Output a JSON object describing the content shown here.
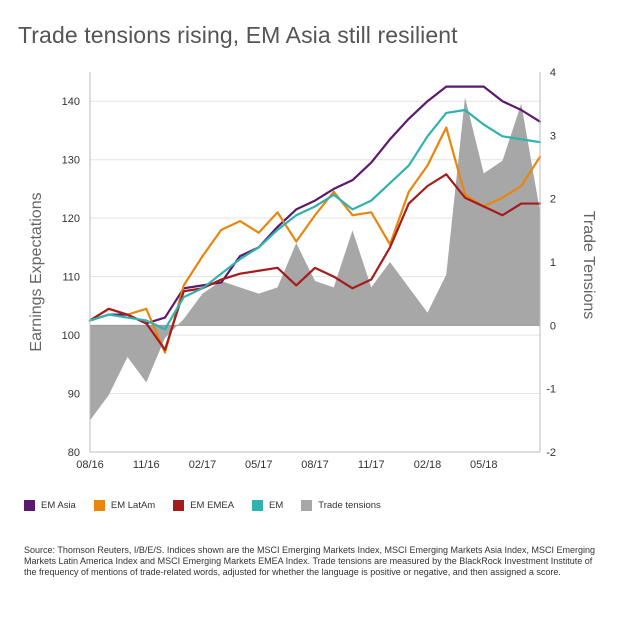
{
  "chart_data": {
    "type": "line",
    "title": "Trade tensions rising, EM Asia still resilient",
    "ylabel": "Earnings Expectations",
    "ylabel_right": "Trade Tensions",
    "ylim": [
      80,
      145
    ],
    "ylim_right": [
      -2,
      4
    ],
    "y_ticks": [
      "80",
      "90",
      "100",
      "110",
      "120",
      "130",
      "140"
    ],
    "y_ticks_right": [
      "-2",
      "-1",
      "0",
      "1",
      "2",
      "3",
      "4"
    ],
    "x_ticks": [
      "08/16",
      "11/16",
      "02/17",
      "05/17",
      "08/17",
      "11/17",
      "02/18",
      "05/18"
    ],
    "x_range": [
      "08/16",
      "08/18"
    ],
    "grid": true,
    "legend_position": "bottom",
    "series": [
      {
        "name": "EM Asia",
        "color": "#5b1a6e",
        "x": [
          "08/16",
          "09/16",
          "10/16",
          "11/16",
          "12/16",
          "01/17",
          "02/17",
          "03/17",
          "04/17",
          "05/17",
          "06/17",
          "07/17",
          "08/17",
          "09/17",
          "10/17",
          "11/17",
          "12/17",
          "01/18",
          "02/18",
          "03/18",
          "04/18",
          "05/18",
          "06/18",
          "07/18",
          "08/18"
        ],
        "values": [
          102.5,
          103.5,
          103.5,
          102,
          103,
          108,
          108.5,
          109,
          113.5,
          115,
          118.5,
          121.5,
          123,
          125,
          126.5,
          129.5,
          133.5,
          137,
          140,
          142.5,
          142.5,
          142.5,
          140,
          138.5,
          136.5
        ]
      },
      {
        "name": "EM LatAm",
        "color": "#e8860e",
        "x": [
          "08/16",
          "09/16",
          "10/16",
          "11/16",
          "12/16",
          "01/17",
          "02/17",
          "03/17",
          "04/17",
          "05/17",
          "06/17",
          "07/17",
          "08/17",
          "09/17",
          "10/17",
          "11/17",
          "12/17",
          "01/18",
          "02/18",
          "03/18",
          "04/18",
          "05/18",
          "06/18",
          "07/18",
          "08/18"
        ],
        "values": [
          102.5,
          104.5,
          103.5,
          104.5,
          97,
          108.5,
          113.5,
          118,
          119.5,
          117.5,
          121,
          116,
          120.5,
          124.5,
          120.5,
          121,
          115.5,
          124.5,
          129,
          135.5,
          124,
          122,
          123.5,
          125.5,
          130.5
        ]
      },
      {
        "name": "EM EMEA",
        "color": "#a51c1c",
        "x": [
          "08/16",
          "09/16",
          "10/16",
          "11/16",
          "12/16",
          "01/17",
          "02/17",
          "03/17",
          "04/17",
          "05/17",
          "06/17",
          "07/17",
          "08/17",
          "09/17",
          "10/17",
          "11/17",
          "12/17",
          "01/18",
          "02/18",
          "03/18",
          "04/18",
          "05/18",
          "06/18",
          "07/18",
          "08/18"
        ],
        "values": [
          102.5,
          104.5,
          103.5,
          102,
          97.5,
          107.5,
          108,
          109.5,
          110.5,
          111,
          111.5,
          108.5,
          111.5,
          110,
          108,
          109.5,
          115,
          122.5,
          125.5,
          127.5,
          123.5,
          122,
          120.5,
          122.5,
          122.5
        ]
      },
      {
        "name": "EM",
        "color": "#2fb2b0",
        "x": [
          "08/16",
          "09/16",
          "10/16",
          "11/16",
          "12/16",
          "01/17",
          "02/17",
          "03/17",
          "04/17",
          "05/17",
          "06/17",
          "07/17",
          "08/17",
          "09/17",
          "10/17",
          "11/17",
          "12/17",
          "01/18",
          "02/18",
          "03/18",
          "04/18",
          "05/18",
          "06/18",
          "07/18",
          "08/18"
        ],
        "values": [
          102.5,
          103.5,
          103,
          102.5,
          101,
          106.5,
          108,
          110.5,
          113,
          115,
          118,
          120.5,
          122,
          124,
          121.5,
          123,
          126,
          129,
          134,
          138,
          138.5,
          136,
          134,
          133.5,
          133
        ]
      },
      {
        "name": "Trade tensions",
        "color": "#a7a7a7",
        "x": [
          "08/16",
          "09/16",
          "10/16",
          "11/16",
          "12/16",
          "01/17",
          "02/17",
          "03/17",
          "04/17",
          "05/17",
          "06/17",
          "07/17",
          "08/17",
          "09/17",
          "10/17",
          "11/17",
          "12/17",
          "01/18",
          "02/18",
          "03/18",
          "04/18",
          "05/18",
          "06/18",
          "07/18",
          "08/18"
        ],
        "values": [
          -1.5,
          -1.1,
          -0.5,
          -0.9,
          -0.2,
          0.1,
          0.5,
          0.7,
          0.6,
          0.5,
          0.6,
          1.3,
          0.7,
          0.6,
          1.5,
          0.6,
          1.0,
          0.6,
          0.2,
          0.8,
          3.6,
          2.4,
          2.6,
          3.5,
          1.8
        ]
      }
    ]
  },
  "legend": [
    {
      "label": "EM Asia",
      "color": "#5b1a6e"
    },
    {
      "label": "EM LatAm",
      "color": "#e8860e"
    },
    {
      "label": "EM EMEA",
      "color": "#a51c1c"
    },
    {
      "label": "EM",
      "color": "#2fb2b0"
    },
    {
      "label": "Trade tensions",
      "color": "#a7a7a7"
    }
  ],
  "source_text": "Source: Thomson Reuters, I/B/E/S. Indices shown are the MSCI Emerging Markets Index, MSCI Emerging Markets Asia Index, MSCI Emerging Markets Latin America Index and MSCI Emerging Markets EMEA Index. Trade tensions are measured by the BlackRock Investment Institute of the frequency of mentions of trade-related words, adjusted for whether the language is positive or negative, and then assigned a score."
}
